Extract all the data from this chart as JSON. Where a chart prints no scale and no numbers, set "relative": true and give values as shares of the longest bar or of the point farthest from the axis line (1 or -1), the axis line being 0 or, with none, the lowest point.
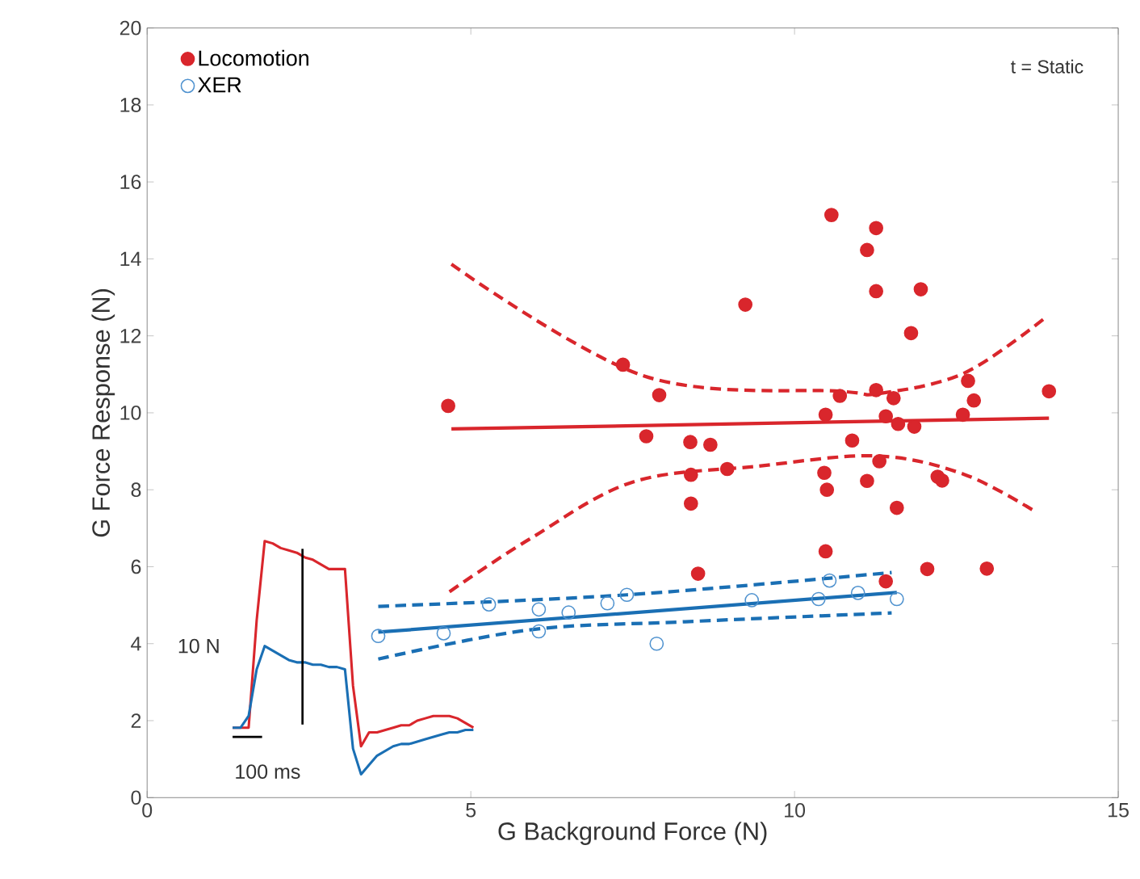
{
  "chart_data": [
    {
      "type": "scatter",
      "xlabel": "G Background Force (N)",
      "ylabel": "G Force Response (N)",
      "xlim": [
        0,
        15
      ],
      "ylim": [
        0,
        20
      ],
      "xticks": [
        0,
        5,
        10,
        15
      ],
      "yticks": [
        0,
        2,
        4,
        6,
        8,
        10,
        12,
        14,
        16,
        18,
        20
      ],
      "grid": false,
      "legend": "top left",
      "annotations": [
        "t = Static"
      ],
      "series": [
        {
          "name": "Locomotion",
          "type": "scatter",
          "marker": "circle",
          "color": "#d9262c",
          "x": [
            10.57,
            11.26,
            11.12,
            11.26,
            11.95,
            9.24,
            11.8,
            7.35,
            7.91,
            12.68,
            13.93,
            10.7,
            11.26,
            11.53,
            12.77,
            10.48,
            11.41,
            12.6,
            11.6,
            11.85,
            7.71,
            8.39,
            8.7,
            10.89,
            8.96,
            8.4,
            10.46,
            11.31,
            10.5,
            11.12,
            12.21,
            12.28,
            8.4,
            11.58,
            10.48,
            8.51,
            12.05,
            12.97,
            11.41,
            4.65
          ],
          "values": [
            15.14,
            14.8,
            14.23,
            13.16,
            13.21,
            12.81,
            12.07,
            11.25,
            10.46,
            10.83,
            10.56,
            10.44,
            10.59,
            10.38,
            10.32,
            9.95,
            9.91,
            9.95,
            9.71,
            9.64,
            9.39,
            9.24,
            9.17,
            9.28,
            8.54,
            8.39,
            8.44,
            8.74,
            8.0,
            8.23,
            8.34,
            8.24,
            7.64,
            7.53,
            6.4,
            5.82,
            5.94,
            5.95,
            5.62,
            10.18
          ]
        },
        {
          "name": "XER",
          "type": "scatter",
          "marker": "circle",
          "color": "#4f92cf",
          "x": [
            3.57,
            4.58,
            5.28,
            6.05,
            6.05,
            6.51,
            7.11,
            7.41,
            7.87,
            9.34,
            10.37,
            10.54,
            10.98,
            11.58
          ],
          "values": [
            4.2,
            4.27,
            5.02,
            4.89,
            4.32,
            4.81,
            5.05,
            5.27,
            4.0,
            5.13,
            5.16,
            5.64,
            5.32,
            5.16
          ]
        },
        {
          "type": "line",
          "color": "#d9262c",
          "line_style": "solid",
          "x": [
            4.7,
            13.93
          ],
          "values": [
            9.58,
            9.86
          ]
        },
        {
          "type": "line",
          "color": "#d9262c",
          "line_style": "dashed",
          "x": [
            4.7,
            7.67,
            10.7,
            11.3,
            12.62,
            13.88
          ],
          "values": [
            13.86,
            10.96,
            10.56,
            10.5,
            11.03,
            12.48
          ]
        },
        {
          "type": "line",
          "color": "#d9262c",
          "line_style": "dashed",
          "x": [
            4.67,
            5.91,
            7.5,
            9.42,
            11.26,
            12.62,
            13.72
          ],
          "values": [
            5.35,
            6.72,
            8.2,
            8.61,
            8.88,
            8.4,
            7.43
          ]
        },
        {
          "type": "line",
          "color": "#1a6fb4",
          "line_style": "solid",
          "x": [
            3.57,
            11.58
          ],
          "values": [
            4.3,
            5.33
          ]
        },
        {
          "type": "line",
          "color": "#1a6fb4",
          "line_style": "dashed",
          "x": [
            3.57,
            7.41,
            11.5
          ],
          "values": [
            4.97,
            5.27,
            5.85
          ]
        },
        {
          "type": "line",
          "color": "#1a6fb4",
          "line_style": "dashed",
          "x": [
            3.57,
            5.91,
            8.31,
            11.5
          ],
          "values": [
            3.6,
            4.36,
            4.57,
            4.8
          ]
        }
      ]
    },
    {
      "type": "line",
      "relative": true,
      "annotations": [
        "10 N",
        "100 ms"
      ],
      "categories": [
        null,
        null,
        null,
        null,
        null,
        null,
        null,
        null,
        null,
        null,
        null,
        null,
        null,
        null,
        null,
        null,
        null,
        null,
        null,
        null,
        null,
        null,
        null,
        null,
        null,
        null,
        null,
        null,
        null,
        null,
        null
      ],
      "series": [
        {
          "color": "#d9262c",
          "values": [
            0.2,
            0.2,
            0.2,
            0.66,
            1,
            0.99,
            0.97,
            0.96,
            0.95,
            0.93,
            0.92,
            0.9,
            0.88,
            0.88,
            0.88,
            0.38,
            0.12,
            0.18,
            0.18,
            0.19,
            0.2,
            0.21,
            0.21,
            0.23,
            0.24,
            0.25,
            0.25,
            0.25,
            0.24,
            0.22,
            0.2
          ]
        },
        {
          "color": "#1a6fb4",
          "values": [
            0.2,
            0.2,
            0.25,
            0.45,
            0.55,
            0.53,
            0.51,
            0.49,
            0.48,
            0.48,
            0.47,
            0.47,
            0.46,
            0.46,
            0.45,
            0.11,
            0,
            0.04,
            0.08,
            0.1,
            0.12,
            0.13,
            0.13,
            0.14,
            0.15,
            0.16,
            0.17,
            0.18,
            0.18,
            0.19,
            0.19
          ]
        }
      ]
    }
  ]
}
